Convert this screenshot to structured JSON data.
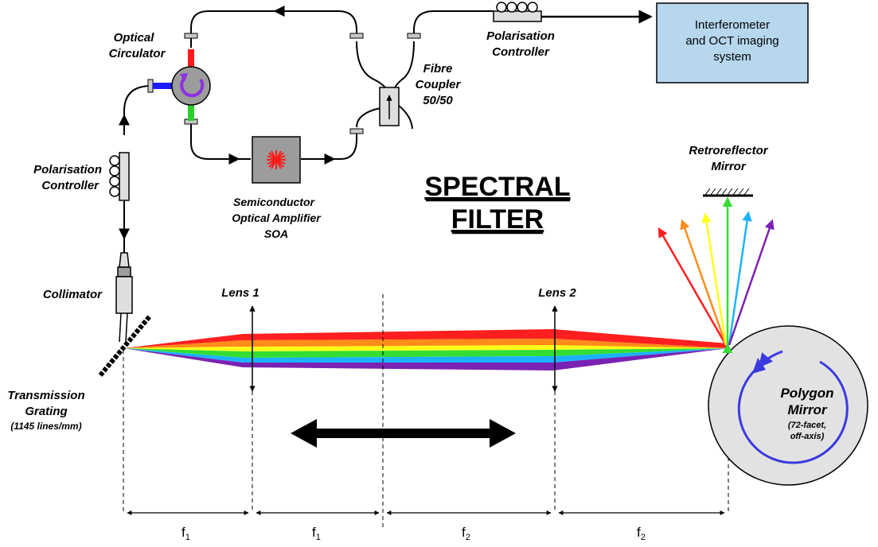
{
  "title": {
    "line1": "SPECTRAL",
    "line2": "FILTER"
  },
  "labels": {
    "optical_circulator": [
      "Optical",
      "Circulator"
    ],
    "polarisation_controller_top": [
      "Polarisation",
      "Controller"
    ],
    "polarisation_controller_left": [
      "Polarisation",
      "Controller"
    ],
    "fibre_coupler": [
      "Fibre",
      "Coupler",
      "50/50"
    ],
    "soa": [
      "Semiconductor",
      "Optical Amplifier",
      "SOA"
    ],
    "collimator": "Collimator",
    "transmission_grating": [
      "Transmission",
      "Grating",
      "(1145 lines/mm)"
    ],
    "lens1": "Lens 1",
    "lens2": "Lens 2",
    "retroreflector": [
      "Retroreflector",
      "Mirror"
    ],
    "polygon_mirror": [
      "Polygon",
      "Mirror",
      "(72-facet,",
      "off-axis)"
    ],
    "interferometer_box": [
      "Interferometer",
      "and OCT imaging",
      "system"
    ]
  },
  "focal_lengths": [
    {
      "main": "f",
      "sub": "1"
    },
    {
      "main": "f",
      "sub": "1"
    },
    {
      "main": "f",
      "sub": "2"
    },
    {
      "main": "f",
      "sub": "2"
    }
  ],
  "colors": {
    "box_fill": "#b7d7ef",
    "component_gray": "#9c9c9c",
    "polygon_fill": "#e2e2e2",
    "soa_star": "#ff1a1a",
    "circulator_arrow": "#8e2fe6",
    "spectrum": [
      "#ff1f1f",
      "#ff8c1a",
      "#ffff1a",
      "#33dd33",
      "#1ab2ff",
      "#7a22b3"
    ]
  }
}
